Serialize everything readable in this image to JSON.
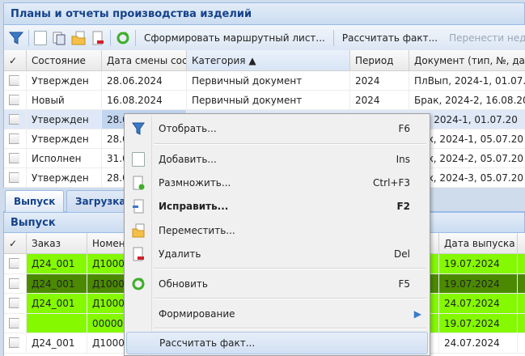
{
  "panel_title": "Планы и отчеты производства изделий",
  "toolbar": {
    "form_route": "Сформировать маршрутный лист...",
    "calc_fact": "Рассчитать факт...",
    "transfer": "Перенести нед"
  },
  "top_grid": {
    "columns": [
      "✓",
      "Состояние",
      "Дата смены сост",
      "Категория ▲",
      "Период",
      "Документ (тип, №, дат"
    ],
    "rows": [
      [
        "Утвержден",
        "28.06.2024",
        "Первичный документ",
        "2024",
        "ПлВып, 2024-1, 01.07.2"
      ],
      [
        "Новый",
        "16.08.2024",
        "Первичный документ",
        "2024",
        "Брак, 2024-2, 16.08.202"
      ],
      [
        "Утвержден",
        "28.0",
        "",
        "",
        "Пр, 2024-1, 01.07.20"
      ],
      [
        "Утвержден",
        "28.0",
        "",
        "",
        "Цех, 2024-1, 05.07.20"
      ],
      [
        "Исполнен",
        "31.0",
        "",
        "",
        "Цех, 2024-2, 05.07.20"
      ],
      [
        "Утвержден",
        "28.0",
        "",
        "",
        "Цех, 2024-3, 05.07.20"
      ]
    ]
  },
  "tabs": [
    "Выпуск",
    "Загрузка"
  ],
  "sub_title": "Выпуск",
  "bottom_grid": {
    "columns": [
      "✓",
      "Заказ",
      "Номен",
      "",
      "Дата выпуска"
    ],
    "rows": [
      {
        "order": "Д24_001",
        "nom": "Д1000",
        "date": "19.07.2024",
        "color": "#84f900"
      },
      {
        "order": "Д24_001",
        "nom": "Д1000",
        "date": "19.07.2024",
        "color": "#4b8a00"
      },
      {
        "order": "Д24_001",
        "nom": "Д1000",
        "date": "24.07.2024",
        "color": "#84f900"
      },
      {
        "order": "",
        "nom": "000000",
        "date": "19.07.2024",
        "color": "#84f900"
      },
      {
        "order": "Д24_001",
        "nom": "Д1000",
        "date": "24.07.2024",
        "color": "#ffffff"
      }
    ]
  },
  "menu": {
    "filter": {
      "label": "Отобрать...",
      "shortcut": "F6"
    },
    "add": {
      "label": "Добавить...",
      "shortcut": "Ins"
    },
    "duplicate": {
      "label": "Размножить...",
      "shortcut": "Ctrl+F3"
    },
    "edit": {
      "label": "Исправить...",
      "shortcut": "F2"
    },
    "move": {
      "label": "Переместить...",
      "shortcut": ""
    },
    "delete": {
      "label": "Удалить",
      "shortcut": "Del"
    },
    "refresh": {
      "label": "Обновить",
      "shortcut": "F5"
    },
    "forming": {
      "label": "Формирование"
    },
    "calc": {
      "label": "Рассчитать факт..."
    }
  }
}
